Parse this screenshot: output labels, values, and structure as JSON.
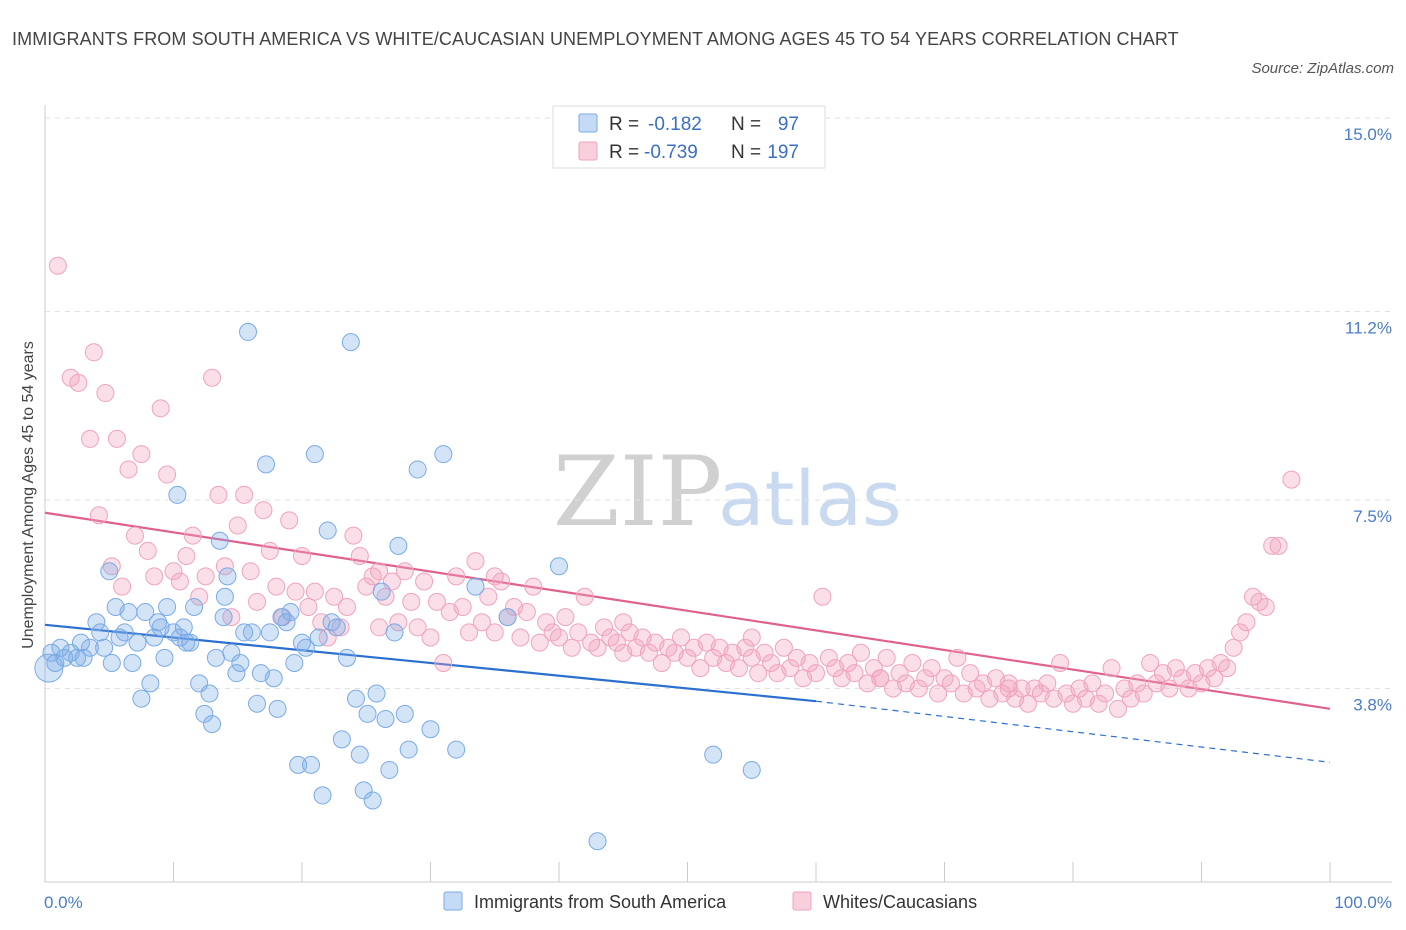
{
  "title": "IMMIGRANTS FROM SOUTH AMERICA VS WHITE/CAUCASIAN UNEMPLOYMENT AMONG AGES 45 TO 54 YEARS CORRELATION CHART",
  "source": "Source: ZipAtlas.com",
  "watermark": {
    "zip": "ZIP",
    "atlas": "atlas"
  },
  "colors": {
    "blue": "#7aaae6",
    "blue_line": "#2b6fcf",
    "pink": "#f0a3bd",
    "pink_line": "#e0618d"
  },
  "legend": {
    "r_label": "R =",
    "n_label": "N =",
    "rows": [
      {
        "r": "-0.182",
        "n": "97"
      },
      {
        "r": "-0.739",
        "n": "197"
      }
    ]
  },
  "chart_data": {
    "type": "scatter",
    "ylabel": "Unemployment Among Ages 45 to 54 years",
    "xlim": [
      0,
      100
    ],
    "ylim": [
      0,
      15
    ],
    "x_tick_labels": [
      "0.0%",
      "100.0%"
    ],
    "y_ticks": [
      {
        "value": 3.8,
        "label": "3.8%"
      },
      {
        "value": 7.5,
        "label": "7.5%"
      },
      {
        "value": 11.2,
        "label": "11.2%"
      },
      {
        "value": 15.0,
        "label": "15.0%"
      }
    ],
    "grid": true,
    "legend_position": "top-center",
    "series": [
      {
        "name": "Immigrants from South America",
        "r": -0.182,
        "n": 97,
        "trend": {
          "x0": 0,
          "y0": 5.05,
          "x1": 60,
          "y1": 3.55,
          "dashed_to_x": 100,
          "dashed_to_y": 2.35
        },
        "points": [
          [
            0.3,
            4.2
          ],
          [
            0.5,
            4.5
          ],
          [
            0.8,
            4.3
          ],
          [
            1.2,
            4.6
          ],
          [
            1.5,
            4.4
          ],
          [
            2.0,
            4.5
          ],
          [
            2.5,
            4.4
          ],
          [
            2.8,
            4.7
          ],
          [
            3.0,
            4.4
          ],
          [
            3.5,
            4.6
          ],
          [
            4.0,
            5.1
          ],
          [
            4.3,
            4.9
          ],
          [
            4.6,
            4.6
          ],
          [
            5.0,
            6.1
          ],
          [
            5.2,
            4.3
          ],
          [
            5.5,
            5.4
          ],
          [
            5.8,
            4.8
          ],
          [
            6.2,
            4.9
          ],
          [
            6.5,
            5.3
          ],
          [
            6.8,
            4.3
          ],
          [
            7.2,
            4.7
          ],
          [
            7.5,
            3.6
          ],
          [
            7.8,
            5.3
          ],
          [
            8.2,
            3.9
          ],
          [
            8.5,
            4.8
          ],
          [
            8.8,
            5.1
          ],
          [
            9.0,
            5.0
          ],
          [
            9.5,
            5.4
          ],
          [
            9.3,
            4.4
          ],
          [
            10.0,
            4.9
          ],
          [
            10.3,
            7.6
          ],
          [
            10.5,
            4.8
          ],
          [
            10.8,
            5.0
          ],
          [
            11.0,
            4.7
          ],
          [
            11.3,
            4.7
          ],
          [
            11.6,
            5.4
          ],
          [
            12.0,
            3.9
          ],
          [
            12.4,
            3.3
          ],
          [
            12.8,
            3.7
          ],
          [
            13.0,
            3.1
          ],
          [
            13.3,
            4.4
          ],
          [
            13.6,
            6.7
          ],
          [
            13.9,
            5.2
          ],
          [
            14.2,
            6.0
          ],
          [
            14.5,
            4.5
          ],
          [
            14.9,
            4.1
          ],
          [
            15.2,
            4.3
          ],
          [
            15.5,
            4.9
          ],
          [
            15.8,
            10.8
          ],
          [
            16.1,
            4.9
          ],
          [
            16.5,
            3.5
          ],
          [
            16.8,
            4.1
          ],
          [
            17.2,
            8.2
          ],
          [
            17.5,
            4.9
          ],
          [
            17.8,
            4.0
          ],
          [
            18.1,
            3.4
          ],
          [
            18.4,
            5.2
          ],
          [
            18.8,
            5.1
          ],
          [
            19.1,
            5.3
          ],
          [
            19.4,
            4.3
          ],
          [
            19.7,
            2.3
          ],
          [
            20.0,
            4.7
          ],
          [
            20.3,
            4.6
          ],
          [
            20.7,
            2.3
          ],
          [
            21.0,
            8.4
          ],
          [
            21.3,
            4.8
          ],
          [
            21.6,
            1.7
          ],
          [
            22.0,
            6.9
          ],
          [
            22.3,
            5.1
          ],
          [
            22.7,
            5.0
          ],
          [
            23.1,
            2.8
          ],
          [
            23.5,
            4.4
          ],
          [
            23.8,
            10.6
          ],
          [
            24.2,
            3.6
          ],
          [
            24.5,
            2.5
          ],
          [
            24.8,
            1.8
          ],
          [
            25.1,
            3.3
          ],
          [
            25.5,
            1.6
          ],
          [
            25.8,
            3.7
          ],
          [
            26.2,
            5.7
          ],
          [
            26.5,
            3.2
          ],
          [
            26.8,
            2.2
          ],
          [
            27.2,
            4.9
          ],
          [
            27.5,
            6.6
          ],
          [
            28.0,
            3.3
          ],
          [
            28.3,
            2.6
          ],
          [
            29.0,
            8.1
          ],
          [
            30.0,
            3.0
          ],
          [
            31.0,
            8.4
          ],
          [
            32.0,
            2.6
          ],
          [
            40.0,
            6.2
          ],
          [
            43.0,
            0.8
          ],
          [
            52.0,
            2.5
          ],
          [
            55.0,
            2.2
          ],
          [
            36.0,
            5.2
          ],
          [
            33.5,
            5.8
          ],
          [
            14.0,
            5.6
          ]
        ]
      },
      {
        "name": "Whites/Caucasians",
        "r": -0.739,
        "n": 197,
        "trend": {
          "x0": 0,
          "y0": 7.25,
          "x1": 100,
          "y1": 3.4
        },
        "points": [
          [
            1.0,
            12.1
          ],
          [
            2.0,
            9.9
          ],
          [
            2.6,
            9.8
          ],
          [
            3.5,
            8.7
          ],
          [
            3.8,
            10.4
          ],
          [
            4.2,
            7.2
          ],
          [
            4.7,
            9.6
          ],
          [
            5.2,
            6.2
          ],
          [
            5.6,
            8.7
          ],
          [
            6.0,
            5.8
          ],
          [
            6.5,
            8.1
          ],
          [
            7.0,
            6.8
          ],
          [
            7.5,
            8.4
          ],
          [
            8.0,
            6.5
          ],
          [
            8.5,
            6.0
          ],
          [
            9.0,
            9.3
          ],
          [
            9.5,
            8.0
          ],
          [
            10.0,
            6.1
          ],
          [
            10.5,
            5.9
          ],
          [
            11.0,
            6.4
          ],
          [
            11.5,
            6.8
          ],
          [
            12.0,
            5.6
          ],
          [
            12.5,
            6.0
          ],
          [
            13.0,
            9.9
          ],
          [
            13.5,
            7.6
          ],
          [
            14.0,
            6.2
          ],
          [
            14.5,
            5.2
          ],
          [
            15.0,
            7.0
          ],
          [
            15.5,
            7.6
          ],
          [
            16.0,
            6.1
          ],
          [
            16.5,
            5.5
          ],
          [
            17.0,
            7.3
          ],
          [
            17.5,
            6.5
          ],
          [
            18.0,
            5.8
          ],
          [
            18.5,
            5.2
          ],
          [
            19.0,
            7.1
          ],
          [
            19.5,
            5.7
          ],
          [
            20.0,
            6.4
          ],
          [
            20.5,
            5.4
          ],
          [
            21.0,
            5.7
          ],
          [
            21.5,
            5.1
          ],
          [
            22.0,
            4.8
          ],
          [
            22.5,
            5.6
          ],
          [
            23.0,
            5.0
          ],
          [
            23.5,
            5.4
          ],
          [
            24.0,
            6.8
          ],
          [
            24.5,
            6.4
          ],
          [
            25.0,
            5.8
          ],
          [
            25.5,
            6.0
          ],
          [
            26.0,
            5.0
          ],
          [
            26.5,
            5.6
          ],
          [
            27.0,
            5.9
          ],
          [
            27.5,
            5.1
          ],
          [
            28.0,
            6.1
          ],
          [
            28.5,
            5.5
          ],
          [
            29.0,
            5.0
          ],
          [
            29.5,
            5.9
          ],
          [
            30.0,
            4.8
          ],
          [
            30.5,
            5.5
          ],
          [
            31.0,
            4.3
          ],
          [
            31.5,
            5.3
          ],
          [
            32.0,
            6.0
          ],
          [
            32.5,
            5.4
          ],
          [
            33.0,
            4.9
          ],
          [
            33.5,
            6.3
          ],
          [
            34.0,
            5.1
          ],
          [
            34.5,
            5.6
          ],
          [
            35.0,
            4.9
          ],
          [
            35.5,
            5.9
          ],
          [
            36.0,
            5.2
          ],
          [
            36.5,
            5.4
          ],
          [
            37.0,
            4.8
          ],
          [
            37.5,
            5.3
          ],
          [
            38.0,
            5.8
          ],
          [
            38.5,
            4.7
          ],
          [
            39.0,
            5.1
          ],
          [
            39.5,
            4.9
          ],
          [
            40.0,
            4.8
          ],
          [
            40.5,
            5.2
          ],
          [
            41.0,
            4.6
          ],
          [
            41.5,
            4.9
          ],
          [
            42.0,
            5.6
          ],
          [
            42.5,
            4.7
          ],
          [
            43.0,
            4.6
          ],
          [
            43.5,
            5.0
          ],
          [
            44.0,
            4.8
          ],
          [
            44.5,
            4.7
          ],
          [
            45.0,
            4.5
          ],
          [
            45.5,
            4.9
          ],
          [
            46.0,
            4.6
          ],
          [
            46.5,
            4.8
          ],
          [
            47.0,
            4.5
          ],
          [
            47.5,
            4.7
          ],
          [
            48.0,
            4.3
          ],
          [
            48.5,
            4.6
          ],
          [
            49.0,
            4.5
          ],
          [
            49.5,
            4.8
          ],
          [
            50.0,
            4.4
          ],
          [
            50.5,
            4.6
          ],
          [
            51.0,
            4.2
          ],
          [
            51.5,
            4.7
          ],
          [
            52.0,
            4.4
          ],
          [
            52.5,
            4.6
          ],
          [
            53.0,
            4.3
          ],
          [
            53.5,
            4.5
          ],
          [
            54.0,
            4.2
          ],
          [
            54.5,
            4.6
          ],
          [
            55.0,
            4.4
          ],
          [
            55.5,
            4.1
          ],
          [
            56.0,
            4.5
          ],
          [
            56.5,
            4.3
          ],
          [
            57.0,
            4.1
          ],
          [
            57.5,
            4.6
          ],
          [
            58.0,
            4.2
          ],
          [
            58.5,
            4.4
          ],
          [
            59.0,
            4.0
          ],
          [
            59.5,
            4.3
          ],
          [
            60.0,
            4.1
          ],
          [
            60.5,
            5.6
          ],
          [
            61.0,
            4.4
          ],
          [
            61.5,
            4.2
          ],
          [
            62.0,
            4.0
          ],
          [
            62.5,
            4.3
          ],
          [
            63.0,
            4.1
          ],
          [
            63.5,
            4.5
          ],
          [
            64.0,
            3.9
          ],
          [
            64.5,
            4.2
          ],
          [
            65.0,
            4.0
          ],
          [
            65.5,
            4.4
          ],
          [
            66.0,
            3.8
          ],
          [
            66.5,
            4.1
          ],
          [
            67.0,
            3.9
          ],
          [
            67.5,
            4.3
          ],
          [
            68.0,
            3.8
          ],
          [
            68.5,
            4.0
          ],
          [
            69.0,
            4.2
          ],
          [
            69.5,
            3.7
          ],
          [
            70.0,
            4.0
          ],
          [
            70.5,
            3.9
          ],
          [
            71.0,
            4.4
          ],
          [
            71.5,
            3.7
          ],
          [
            72.0,
            4.1
          ],
          [
            72.5,
            3.8
          ],
          [
            73.0,
            3.9
          ],
          [
            73.5,
            3.6
          ],
          [
            74.0,
            4.0
          ],
          [
            74.5,
            3.7
          ],
          [
            75.0,
            3.9
          ],
          [
            75.5,
            3.6
          ],
          [
            76.0,
            3.8
          ],
          [
            76.5,
            3.5
          ],
          [
            77.0,
            3.8
          ],
          [
            77.5,
            3.7
          ],
          [
            78.0,
            3.9
          ],
          [
            78.5,
            3.6
          ],
          [
            79.0,
            4.3
          ],
          [
            79.5,
            3.7
          ],
          [
            80.0,
            3.5
          ],
          [
            80.5,
            3.8
          ],
          [
            81.0,
            3.6
          ],
          [
            81.5,
            3.9
          ],
          [
            82.0,
            3.5
          ],
          [
            82.5,
            3.7
          ],
          [
            83.0,
            4.2
          ],
          [
            83.5,
            3.4
          ],
          [
            84.0,
            3.8
          ],
          [
            84.5,
            3.6
          ],
          [
            85.0,
            3.9
          ],
          [
            85.5,
            3.7
          ],
          [
            86.0,
            4.3
          ],
          [
            86.5,
            3.9
          ],
          [
            87.0,
            4.1
          ],
          [
            87.5,
            3.8
          ],
          [
            88.0,
            4.2
          ],
          [
            88.5,
            4.0
          ],
          [
            89.0,
            3.8
          ],
          [
            89.5,
            4.1
          ],
          [
            90.0,
            3.9
          ],
          [
            90.5,
            4.2
          ],
          [
            91.0,
            4.0
          ],
          [
            91.5,
            4.3
          ],
          [
            92.0,
            4.2
          ],
          [
            92.5,
            4.6
          ],
          [
            93.0,
            4.9
          ],
          [
            93.5,
            5.1
          ],
          [
            94.0,
            5.6
          ],
          [
            94.5,
            5.5
          ],
          [
            95.0,
            5.4
          ],
          [
            95.5,
            6.6
          ],
          [
            96.0,
            6.6
          ],
          [
            97.0,
            7.9
          ],
          [
            26.0,
            6.1
          ],
          [
            35.0,
            6.0
          ],
          [
            45.0,
            5.1
          ],
          [
            55.0,
            4.8
          ],
          [
            65.0,
            4.0
          ],
          [
            75.0,
            3.8
          ]
        ]
      }
    ]
  },
  "bottom_legend": [
    {
      "label": "Immigrants from South America"
    },
    {
      "label": "Whites/Caucasians"
    }
  ]
}
